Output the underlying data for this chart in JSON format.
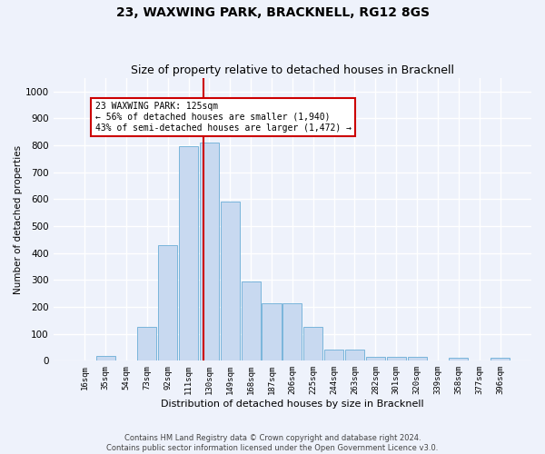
{
  "title": "23, WAXWING PARK, BRACKNELL, RG12 8GS",
  "subtitle": "Size of property relative to detached houses in Bracknell",
  "xlabel": "Distribution of detached houses by size in Bracknell",
  "ylabel": "Number of detached properties",
  "categories": [
    "16sqm",
    "35sqm",
    "54sqm",
    "73sqm",
    "92sqm",
    "111sqm",
    "130sqm",
    "149sqm",
    "168sqm",
    "187sqm",
    "206sqm",
    "225sqm",
    "244sqm",
    "263sqm",
    "282sqm",
    "301sqm",
    "320sqm",
    "339sqm",
    "358sqm",
    "377sqm",
    "396sqm"
  ],
  "bar_values": [
    0,
    19,
    0,
    125,
    430,
    795,
    808,
    590,
    293,
    213,
    213,
    125,
    42,
    42,
    13,
    13,
    13,
    0,
    10,
    0,
    10
  ],
  "bar_color": "#c8d9f0",
  "bar_edge_color": "#6aaed6",
  "vline_color": "#cc0000",
  "ylim": [
    0,
    1050
  ],
  "yticks": [
    0,
    100,
    200,
    300,
    400,
    500,
    600,
    700,
    800,
    900,
    1000
  ],
  "annotation_text": "23 WAXWING PARK: 125sqm\n← 56% of detached houses are smaller (1,940)\n43% of semi-detached houses are larger (1,472) →",
  "annotation_box_color": "#ffffff",
  "annotation_box_edge": "#cc0000",
  "footer_line1": "Contains HM Land Registry data © Crown copyright and database right 2024.",
  "footer_line2": "Contains public sector information licensed under the Open Government Licence v3.0.",
  "bg_color": "#eef2fb",
  "plot_bg_color": "#eef2fb",
  "grid_color": "#ffffff",
  "title_fontsize": 10,
  "subtitle_fontsize": 9
}
